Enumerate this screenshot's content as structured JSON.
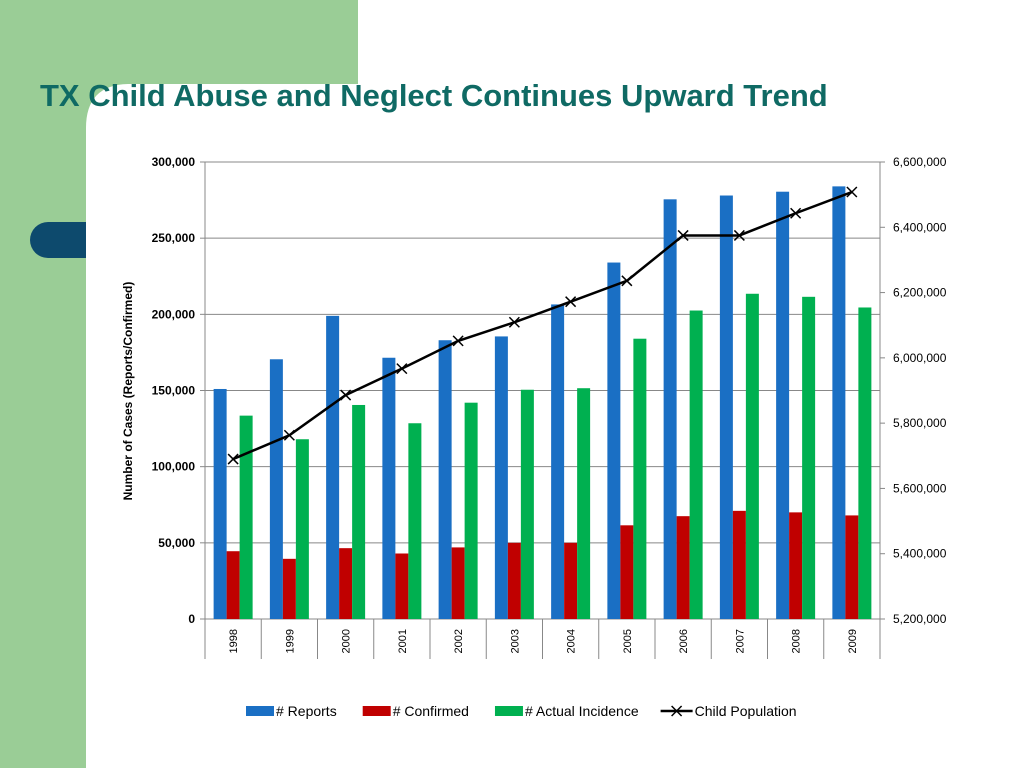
{
  "slide": {
    "title": "TX Child Abuse and Neglect Continues Upward Trend",
    "colors": {
      "sidebar": "#9acd96",
      "accent_tab": "#0d4a6d",
      "title": "#0f6a64"
    }
  },
  "chart_data": {
    "type": "bar",
    "title": "TX Child Abuse and Neglect Continues Upward Trend",
    "categories": [
      "1998",
      "1999",
      "2000",
      "2001",
      "2002",
      "2003",
      "2004",
      "2005",
      "2006",
      "2007",
      "2008",
      "2009"
    ],
    "ylabel": "Number of Cases (Reports/Confirmed)",
    "xlabel": "",
    "ylim": [
      0,
      300000
    ],
    "y_ticks": [
      "0",
      "50,000",
      "100,000",
      "150,000",
      "200,000",
      "250,000",
      "300,000"
    ],
    "y2lim": [
      5200000,
      6600000
    ],
    "y2_ticks": [
      "5,200,000",
      "5,400,000",
      "5,600,000",
      "5,800,000",
      "6,000,000",
      "6,200,000",
      "6,400,000",
      "6,600,000"
    ],
    "grid": true,
    "legend_position": "bottom",
    "series": [
      {
        "name": "# Reports",
        "type": "bar",
        "axis": "left",
        "color": "#1a6fc4",
        "values": [
          151000,
          170500,
          199000,
          171500,
          183000,
          185500,
          206500,
          234000,
          275500,
          278000,
          280500,
          284000
        ]
      },
      {
        "name": "# Confirmed",
        "type": "bar",
        "axis": "left",
        "color": "#c00000",
        "values": [
          44500,
          39500,
          46500,
          43000,
          47000,
          50000,
          50000,
          61500,
          67500,
          71000,
          70000,
          68000
        ]
      },
      {
        "name": "# Actual Incidence",
        "type": "bar",
        "axis": "left",
        "color": "#00b050",
        "values": [
          133500,
          118000,
          140500,
          128500,
          142000,
          150500,
          151500,
          184000,
          202500,
          213500,
          211500,
          204500
        ]
      },
      {
        "name": "Child Population",
        "type": "line",
        "axis": "right",
        "color": "#000000",
        "marker": "x",
        "values": [
          5690000,
          5763000,
          5886000,
          5967000,
          6052000,
          6109000,
          6172000,
          6236000,
          6375000,
          6375000,
          6443000,
          6508000
        ]
      }
    ]
  }
}
